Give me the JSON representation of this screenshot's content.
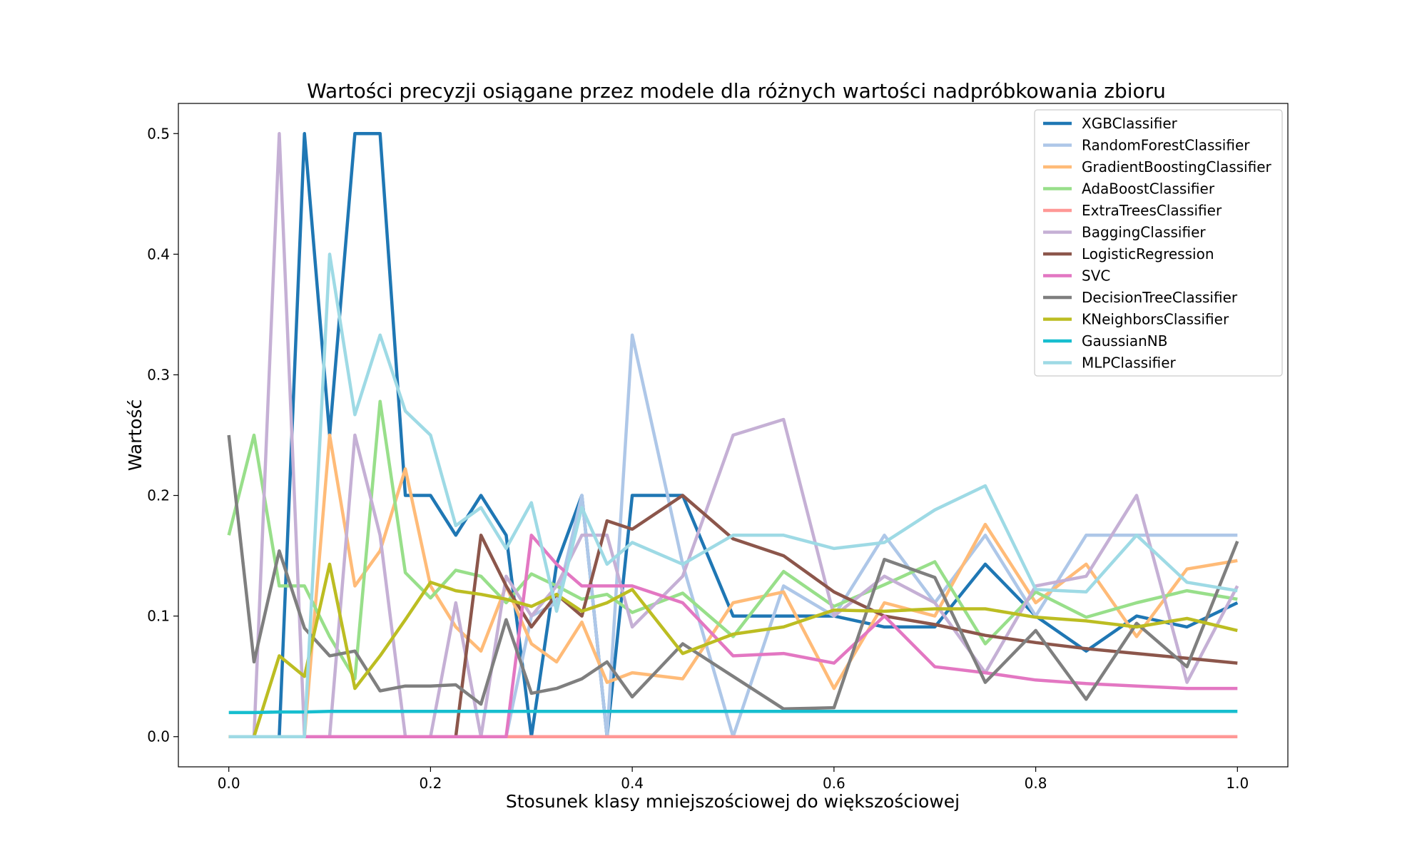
{
  "chart_data": {
    "type": "line",
    "title": "Wartości precyzji osiągane przez modele dla różnych wartości nadpróbkowania zbioru",
    "xlabel": "Stosunek klasy mniejszościowej do większościowej",
    "ylabel": "Wartość",
    "xlim": [
      -0.05,
      1.05
    ],
    "ylim": [
      -0.025,
      0.525
    ],
    "xticks": [
      "0.0",
      "0.2",
      "0.4",
      "0.6",
      "0.8",
      "1.0"
    ],
    "yticks": [
      "0.0",
      "0.1",
      "0.2",
      "0.3",
      "0.4",
      "0.5"
    ],
    "grid": false,
    "legend_position": "top-right",
    "x": [
      0.0,
      0.025,
      0.05,
      0.075,
      0.1,
      0.125,
      0.15,
      0.175,
      0.2,
      0.225,
      0.25,
      0.275,
      0.3,
      0.325,
      0.35,
      0.375,
      0.4,
      0.45,
      0.5,
      0.55,
      0.6,
      0.65,
      0.7,
      0.75,
      0.8,
      0.85,
      0.9,
      0.95,
      1.0
    ],
    "series": [
      {
        "name": "XGBClassifier",
        "color": "#1f77b4",
        "values": [
          0,
          0,
          0,
          0.5,
          0.25,
          0.5,
          0.5,
          0.2,
          0.2,
          0.167,
          0.2,
          0.167,
          0.0,
          0.143,
          0.2,
          0.0,
          0.2,
          0.2,
          0.1,
          0.1,
          0.1,
          0.091,
          0.091,
          0.143,
          0.1,
          0.071,
          0.1,
          0.091,
          0.111
        ]
      },
      {
        "name": "RandomForestClassifier",
        "color": "#aec7e8",
        "values": [
          0,
          0,
          0,
          0,
          0,
          0,
          0,
          0,
          0,
          0,
          0,
          0,
          0.1,
          0.111,
          0.2,
          0.0,
          0.333,
          0.143,
          0.0,
          0.125,
          0.1,
          0.167,
          0.111,
          0.167,
          0.1,
          0.167,
          0.167,
          0.167,
          0.167
        ]
      },
      {
        "name": "GradientBoostingClassifier",
        "color": "#ffbb78",
        "values": [
          0,
          0,
          0,
          0,
          0.25,
          0.125,
          0.154,
          0.222,
          0.125,
          0.091,
          0.071,
          0.125,
          0.077,
          0.062,
          0.095,
          0.045,
          0.053,
          0.048,
          0.111,
          0.12,
          0.04,
          0.111,
          0.1,
          0.176,
          0.111,
          0.143,
          0.083,
          0.139,
          0.146
        ]
      },
      {
        "name": "AdaBoostClassifier",
        "color": "#98df8a",
        "values": [
          0.167,
          0.25,
          0.125,
          0.125,
          0.083,
          0.048,
          0.278,
          0.136,
          0.115,
          0.138,
          0.133,
          0.111,
          0.135,
          0.125,
          0.114,
          0.118,
          0.103,
          0.119,
          0.083,
          0.137,
          0.108,
          0.126,
          0.145,
          0.077,
          0.12,
          0.099,
          0.111,
          0.121,
          0.114
        ]
      },
      {
        "name": "ExtraTreesClassifier",
        "color": "#ff9896",
        "values": [
          0,
          0,
          0,
          0,
          0,
          0,
          0,
          0,
          0,
          0,
          0,
          0,
          0,
          0,
          0,
          0,
          0,
          0,
          0,
          0,
          0,
          0,
          0,
          0,
          0,
          0,
          0,
          0,
          0
        ]
      },
      {
        "name": "BaggingClassifier",
        "color": "#c5b0d5",
        "values": [
          0,
          0,
          0.5,
          0,
          0,
          0.25,
          0.167,
          0,
          0,
          0.111,
          0,
          0.133,
          0.1,
          0.125,
          0.167,
          0.167,
          0.091,
          0.133,
          0.25,
          0.263,
          0.1,
          0.133,
          0.111,
          0.053,
          0.125,
          0.133,
          0.2,
          0.045,
          0.125
        ]
      },
      {
        "name": "LogisticRegression",
        "color": "#8c564b",
        "values": [
          0,
          0,
          0,
          0,
          0,
          0,
          0,
          0,
          0,
          0,
          0.167,
          0.125,
          0.091,
          0.118,
          0.1,
          0.179,
          0.172,
          0.2,
          0.164,
          0.15,
          0.12,
          0.1,
          0.093,
          0.084,
          0.078,
          0.073,
          0.069,
          0.065,
          0.061
        ]
      },
      {
        "name": "SVC",
        "color": "#e377c2",
        "values": [
          0,
          0,
          0,
          0,
          0,
          0,
          0,
          0,
          0,
          0,
          0,
          0,
          0.167,
          0.143,
          0.125,
          0.125,
          0.125,
          0.111,
          0.067,
          0.069,
          0.061,
          0.1,
          0.058,
          0.053,
          0.047,
          0.044,
          0.042,
          0.04,
          0.04
        ]
      },
      {
        "name": "DecisionTreeClassifier",
        "color": "#7f7f7f",
        "values": [
          0.25,
          0.062,
          0.154,
          0.09,
          0.067,
          0.071,
          0.038,
          0.042,
          0.042,
          0.043,
          0.027,
          0.097,
          0.036,
          0.04,
          0.048,
          0.062,
          0.033,
          0.077,
          0.05,
          0.023,
          0.024,
          0.147,
          0.132,
          0.045,
          0.088,
          0.031,
          0.094,
          0.058,
          0.162
        ]
      },
      {
        "name": "KNeighborsClassifier",
        "color": "#bcbd22",
        "values": [
          0,
          0,
          0.067,
          0.05,
          0.143,
          0.04,
          0.067,
          0.097,
          0.128,
          0.121,
          0.118,
          0.114,
          0.108,
          0.118,
          0.104,
          0.111,
          0.122,
          0.069,
          0.085,
          0.091,
          0.105,
          0.104,
          0.106,
          0.106,
          0.099,
          0.096,
          0.091,
          0.098,
          0.088
        ]
      },
      {
        "name": "GaussianNB",
        "color": "#17becf",
        "values": [
          0.02,
          0.02,
          0.0205,
          0.0205,
          0.021,
          0.021,
          0.021,
          0.021,
          0.021,
          0.021,
          0.021,
          0.021,
          0.021,
          0.021,
          0.021,
          0.021,
          0.021,
          0.021,
          0.021,
          0.021,
          0.021,
          0.021,
          0.021,
          0.021,
          0.021,
          0.021,
          0.021,
          0.021,
          0.021
        ]
      },
      {
        "name": "MLPClassifier",
        "color": "#9edae5",
        "values": [
          0,
          0,
          0,
          0,
          0.4,
          0.267,
          0.333,
          0.27,
          0.25,
          0.175,
          0.19,
          0.156,
          0.194,
          0.104,
          0.19,
          0.143,
          0.161,
          0.143,
          0.167,
          0.167,
          0.156,
          0.161,
          0.188,
          0.208,
          0.122,
          0.12,
          0.167,
          0.128,
          0.121
        ]
      }
    ]
  }
}
